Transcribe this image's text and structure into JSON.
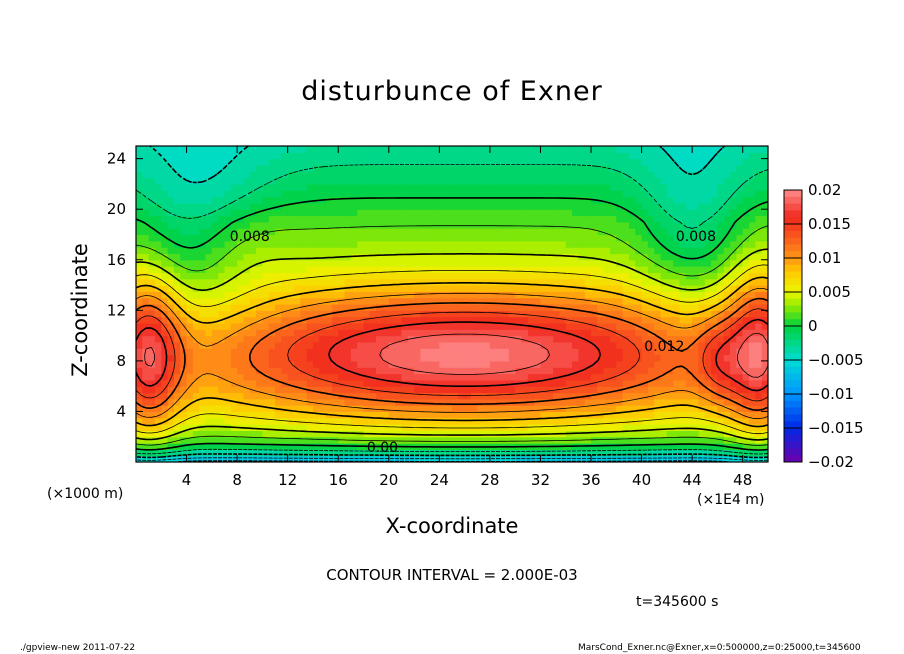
{
  "chart_data": {
    "type": "heatmap",
    "title": "disturbunce of Exner",
    "xlabel": "X-coordinate",
    "ylabel": "Z-coordinate",
    "x_unit_left": "(×1000 m)",
    "x_unit_right": "(×1E4 m)",
    "xlim": [
      0,
      50
    ],
    "ylim": [
      0,
      25
    ],
    "xticks": [
      4,
      8,
      12,
      16,
      20,
      24,
      28,
      32,
      36,
      40,
      44,
      48
    ],
    "yticks": [
      4,
      8,
      12,
      16,
      20,
      24
    ],
    "colorbar": {
      "range": [
        -0.02,
        0.02
      ],
      "tick_labels": [
        "0.02",
        "0.015",
        "0.01",
        "0.005",
        "0",
        "−0.005",
        "−0.01",
        "−0.015",
        "−0.02"
      ],
      "tick_values": [
        0.02,
        0.015,
        0.01,
        0.005,
        0,
        -0.005,
        -0.01,
        -0.015,
        -0.02
      ]
    },
    "contour_interval": 0.002,
    "contour_labels": [
      {
        "text": "0.008",
        "x": 9.0,
        "z": 17.5
      },
      {
        "text": "0.008",
        "x": 44.3,
        "z": 17.5
      },
      {
        "text": "0.012",
        "x": 41.8,
        "z": 8.8
      },
      {
        "text": "0.00",
        "x": 19.5,
        "z": 0.8
      }
    ],
    "grid": false
  },
  "annotations": {
    "contour_interval_text": "CONTOUR INTERVAL = 2.000E-03",
    "time_text": "t=345600 s",
    "footer_left": "./gpview-new   2011-07-22",
    "footer_right": "MarsCond_Exner.nc@Exner,x=0:500000,z=0:25000,t=345600"
  }
}
